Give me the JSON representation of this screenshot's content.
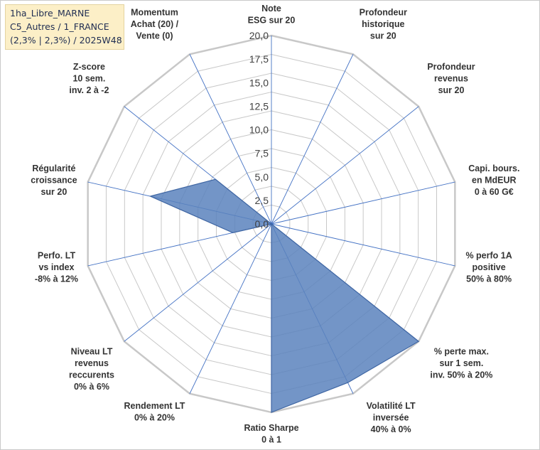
{
  "info": {
    "line1": "1ha_Libre_MARNE",
    "line2": "C5_Autres / 1_FRANCE",
    "line3": "(2,3% | 2,3%) / 2025W48"
  },
  "colors": {
    "fill": "#5b82bd",
    "stroke": "#3f66a3",
    "grid": "#c8c8c8",
    "axis": "#4472c4"
  },
  "chart_data": {
    "type": "radar",
    "rmax": 20,
    "grid_levels": 10,
    "tick_labels": [
      "0,0",
      "2,5",
      "5,0",
      "7,5",
      "10,0",
      "12,5",
      "15,0",
      "17,5",
      "20,0"
    ],
    "axes": [
      {
        "label": [
          "Note",
          "ESG sur 20"
        ],
        "value": 0
      },
      {
        "label": [
          "Profondeur",
          "historique",
          "sur 20"
        ],
        "value": 0
      },
      {
        "label": [
          "Profondeur",
          "revenus",
          "sur 20"
        ],
        "value": 0
      },
      {
        "label": [
          "Capi. bours.",
          "en MdEUR",
          "0 à 60 G€"
        ],
        "value": 0
      },
      {
        "label": [
          "% perfo 1A",
          "positive",
          "50% à 80%"
        ],
        "value": 0
      },
      {
        "label": [
          "% perte max.",
          "sur 1 sem.",
          "inv. 50% à 20%"
        ],
        "value": 20
      },
      {
        "label": [
          "Volatilité LT",
          "inversée",
          "40% à 0%"
        ],
        "value": 18.7
      },
      {
        "label": [
          "Ratio Sharpe",
          "0 à 1"
        ],
        "value": 20
      },
      {
        "label": [
          "Rendement LT",
          "0% à 20%"
        ],
        "value": 0
      },
      {
        "label": [
          "Niveau LT",
          "revenus",
          "reccurents",
          "0% à 6%"
        ],
        "value": 0
      },
      {
        "label": [
          "Perfo. LT",
          "vs index",
          "-8% à 12%"
        ],
        "value": 4.2
      },
      {
        "label": [
          "Régularité",
          "croissance",
          "sur 20"
        ],
        "value": 13.2
      },
      {
        "label": [
          "Z-score",
          "10 sem.",
          "inv. 2 à -2"
        ],
        "value": 7.6
      },
      {
        "label": [
          "Momentum",
          "Achat (20) /",
          "Vente (0)"
        ],
        "value": 0
      }
    ]
  }
}
